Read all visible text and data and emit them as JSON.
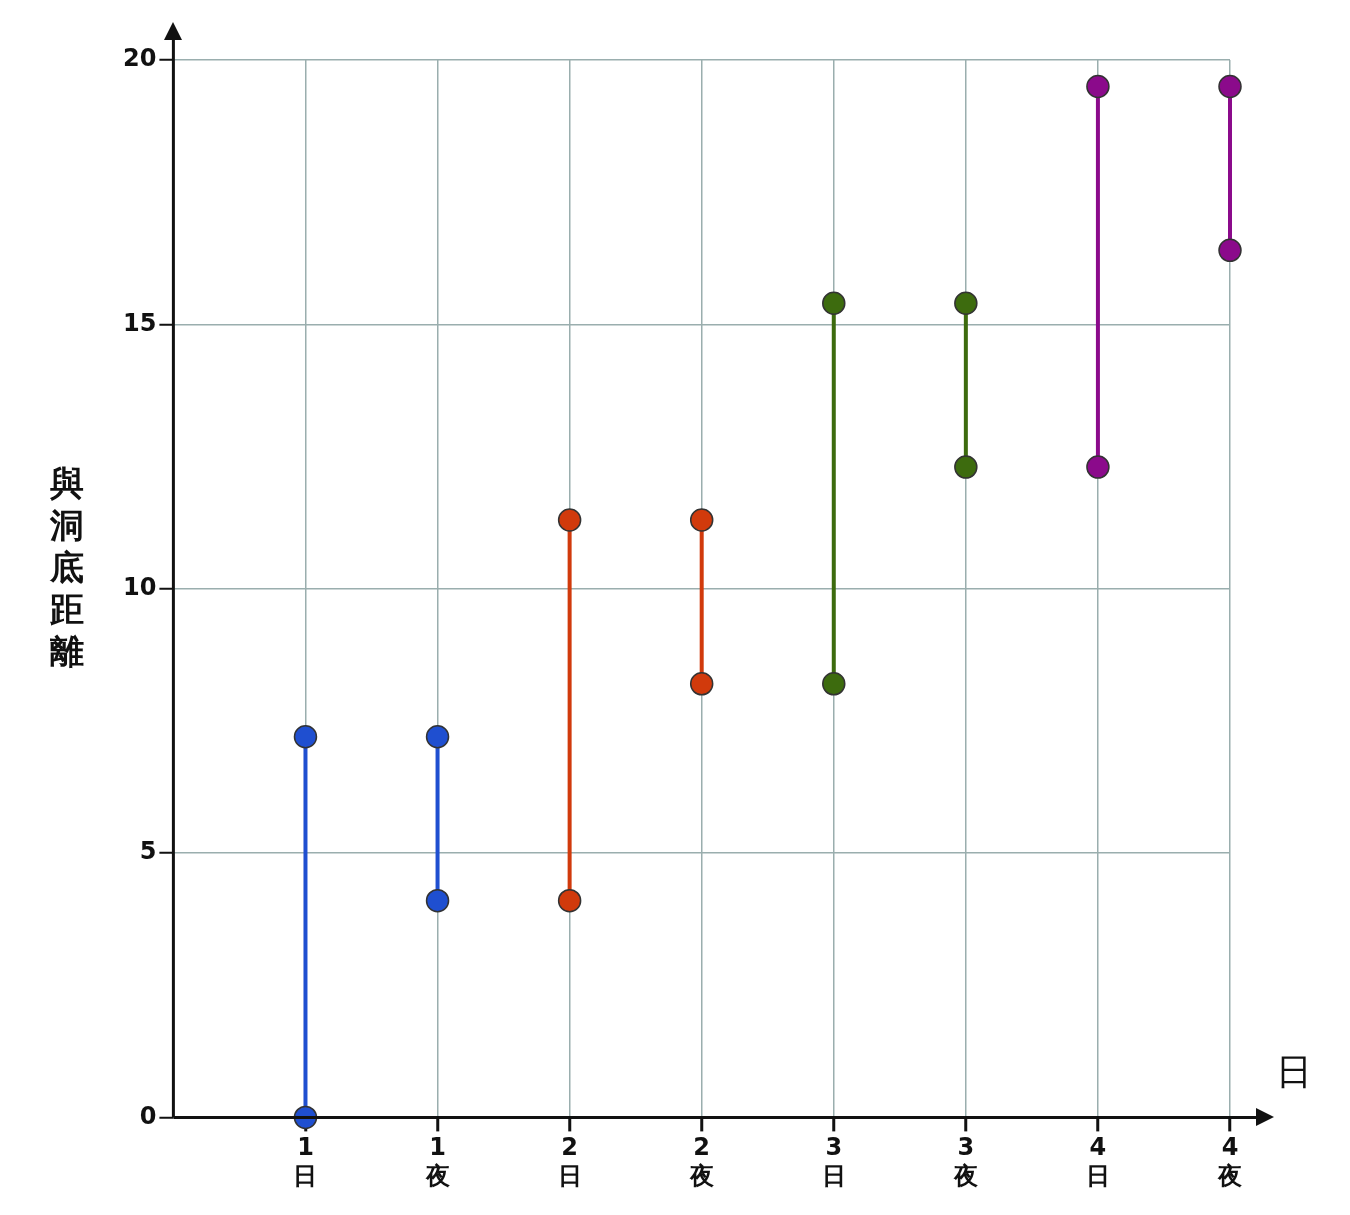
{
  "chart_data": {
    "type": "line",
    "xlabel": "日",
    "ylabel": "與洞底距離",
    "categories": [
      "1\n日",
      "1\n夜",
      "2\n日",
      "2\n夜",
      "3\n日",
      "3\n夜",
      "4\n日",
      "4\n夜"
    ],
    "series": [
      {
        "x": [
          "1\n日",
          "1\n日"
        ],
        "values": [
          0,
          7.2
        ],
        "color": "#1f4fd0"
      },
      {
        "x": [
          "1\n夜",
          "1\n夜"
        ],
        "values": [
          4.1,
          7.2
        ],
        "color": "#1f4fd0"
      },
      {
        "x": [
          "2\n日",
          "2\n日"
        ],
        "values": [
          4.1,
          11.3
        ],
        "color": "#d13a0c"
      },
      {
        "x": [
          "2\n夜",
          "2\n夜"
        ],
        "values": [
          8.2,
          11.3
        ],
        "color": "#d13a0c"
      },
      {
        "x": [
          "3\n日",
          "3\n日"
        ],
        "values": [
          8.2,
          15.4
        ],
        "color": "#3d6b0e"
      },
      {
        "x": [
          "3\n夜",
          "3\n夜"
        ],
        "values": [
          12.3,
          15.4
        ],
        "color": "#3d6b0e"
      },
      {
        "x": [
          "4\n日",
          "4\n日"
        ],
        "values": [
          12.3,
          19.5
        ],
        "color": "#8b0a8b"
      },
      {
        "x": [
          "4\n夜",
          "4\n夜"
        ],
        "values": [
          16.4,
          19.5
        ],
        "color": "#8b0a8b"
      }
    ],
    "ylim": [
      0,
      20
    ],
    "yticks": [
      0,
      5,
      10,
      15,
      20
    ],
    "grid": true,
    "marker": "circle",
    "line_style": "solid"
  }
}
